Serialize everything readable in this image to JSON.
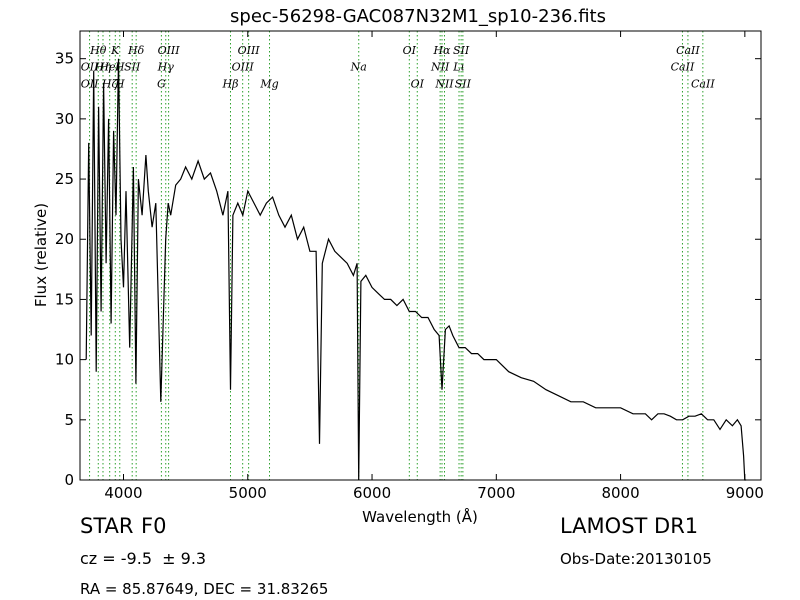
{
  "chart_data": {
    "type": "line",
    "title": "spec-56298-GAC087N32M1_sp10-236.fits",
    "xlabel": "Wavelength (Å)",
    "ylabel": "Flux (relative)",
    "xlim": [
      3650,
      9130
    ],
    "ylim": [
      0,
      37.3
    ],
    "x_ticks": [
      4000,
      5000,
      6000,
      7000,
      8000,
      9000
    ],
    "y_ticks": [
      0,
      5,
      10,
      15,
      20,
      25,
      30,
      35
    ],
    "grid": false,
    "series": [
      {
        "x": [
          3700,
          3720,
          3740,
          3760,
          3780,
          3800,
          3820,
          3840,
          3860,
          3880,
          3900,
          3920,
          3940,
          3960,
          3980,
          4000,
          4020,
          4050,
          4080,
          4100,
          4120,
          4150,
          4180,
          4200,
          4230,
          4260,
          4300,
          4340,
          4360,
          4380,
          4420,
          4460,
          4500,
          4550,
          4600,
          4650,
          4700,
          4750,
          4800,
          4840,
          4861,
          4880,
          4920,
          4960,
          5000,
          5050,
          5100,
          5150,
          5200,
          5250,
          5300,
          5350,
          5400,
          5450,
          5500,
          5550,
          5577,
          5600,
          5650,
          5700,
          5750,
          5800,
          5850,
          5880,
          5893,
          5910,
          5950,
          6000,
          6050,
          6100,
          6150,
          6200,
          6250,
          6300,
          6350,
          6400,
          6450,
          6500,
          6540,
          6563,
          6590,
          6620,
          6650,
          6700,
          6750,
          6800,
          6850,
          6900,
          6950,
          7000,
          7100,
          7200,
          7300,
          7400,
          7500,
          7600,
          7700,
          7800,
          7900,
          8000,
          8100,
          8200,
          8250,
          8300,
          8350,
          8400,
          8450,
          8500,
          8550,
          8600,
          8650,
          8700,
          8750,
          8800,
          8850,
          8900,
          8940,
          8970,
          8990,
          9000,
          9010
        ],
        "y": [
          10,
          28,
          12,
          34,
          9,
          31,
          14,
          33,
          18,
          30,
          13,
          29,
          22,
          35,
          20,
          16,
          24,
          11,
          26,
          8,
          25,
          22,
          27,
          24,
          21,
          23,
          6.5,
          20,
          23,
          22,
          24.5,
          25,
          26,
          25,
          26.5,
          25,
          25.5,
          24,
          22,
          24,
          7.5,
          22,
          23,
          22,
          24,
          23,
          22,
          23,
          23.5,
          22,
          21,
          22,
          20,
          21,
          19,
          19,
          3,
          18,
          20,
          19,
          18.5,
          18,
          17,
          18,
          0,
          16.5,
          17,
          16,
          15.5,
          15,
          15,
          14.5,
          15,
          14,
          14,
          13.5,
          13.5,
          12.5,
          12,
          7.5,
          12.5,
          12.8,
          12,
          11,
          11,
          10.5,
          10.5,
          10,
          10,
          10,
          9,
          8.5,
          8.2,
          7.5,
          7,
          6.5,
          6.5,
          6,
          6,
          6,
          5.5,
          5.5,
          5,
          5.5,
          5.5,
          5.3,
          5,
          5,
          5.3,
          5.3,
          5.5,
          5,
          5,
          4.2,
          5,
          4.5,
          5,
          4.5,
          2,
          0,
          0
        ]
      }
    ],
    "annotations": [
      {
        "text": "Hθ",
        "x": 3797,
        "y": 35.4,
        "line": true
      },
      {
        "text": "K",
        "x": 3934,
        "y": 35.4,
        "line": true
      },
      {
        "text": "Hδ",
        "x": 4102,
        "y": 35.4,
        "line": true
      },
      {
        "text": "OIII",
        "x": 4363,
        "y": 35.4,
        "line": true
      },
      {
        "text": "OIII",
        "x": 5007,
        "y": 35.4,
        "line": true
      },
      {
        "text": "OI",
        "x": 6300,
        "y": 35.4,
        "line": true
      },
      {
        "text": "Hα",
        "x": 6563,
        "y": 35.4,
        "line": true
      },
      {
        "text": "SII",
        "x": 6717,
        "y": 35.4,
        "line": true
      },
      {
        "text": "CaII",
        "x": 8542,
        "y": 35.4,
        "line": true
      },
      {
        "text": "OII",
        "x": 3727,
        "y": 34.0,
        "line": true
      },
      {
        "text": "Hη",
        "x": 3835,
        "y": 34.0,
        "line": true
      },
      {
        "text": "HeI",
        "x": 3889,
        "y": 34.0,
        "line": true
      },
      {
        "text": "H",
        "x": 3970,
        "y": 34.0,
        "line": true
      },
      {
        "text": "SII",
        "x": 4070,
        "y": 34.0,
        "line": true
      },
      {
        "text": "Hγ",
        "x": 4340,
        "y": 34.0,
        "line": true
      },
      {
        "text": "OIII",
        "x": 4959,
        "y": 34.0,
        "line": true
      },
      {
        "text": "Na",
        "x": 5893,
        "y": 34.0,
        "line": true
      },
      {
        "text": "NII",
        "x": 6548,
        "y": 34.0,
        "line": true
      },
      {
        "text": "Lι",
        "x": 6700,
        "y": 34.0,
        "line": true
      },
      {
        "text": "CaII",
        "x": 8498,
        "y": 34.0,
        "line": true
      },
      {
        "text": "OII",
        "x": 3727,
        "y": 32.6,
        "line": false
      },
      {
        "text": "Hζ",
        "x": 3889,
        "y": 32.6,
        "line": false
      },
      {
        "text": "H",
        "x": 3970,
        "y": 32.6,
        "line": false
      },
      {
        "text": "G",
        "x": 4305,
        "y": 32.6,
        "line": true
      },
      {
        "text": "Hβ",
        "x": 4861,
        "y": 32.6,
        "line": true
      },
      {
        "text": "Mg",
        "x": 5175,
        "y": 32.6,
        "line": true
      },
      {
        "text": "OI",
        "x": 6364,
        "y": 32.6,
        "line": true
      },
      {
        "text": "NII",
        "x": 6583,
        "y": 32.6,
        "line": true
      },
      {
        "text": "SII",
        "x": 6731,
        "y": 32.6,
        "line": true
      },
      {
        "text": "CaII",
        "x": 8662,
        "y": 32.6,
        "line": true
      }
    ],
    "line_color": "#000000",
    "annotation_color": "#2ca02c"
  },
  "info": {
    "object_type": "STAR",
    "subclass": "F0",
    "survey": "LAMOST DR1",
    "redshift": "cz = -9.5  ± 9.3",
    "obs_date": "Obs-Date:20130105",
    "coords": "RA = 85.87649, DEC = 31.83265"
  }
}
